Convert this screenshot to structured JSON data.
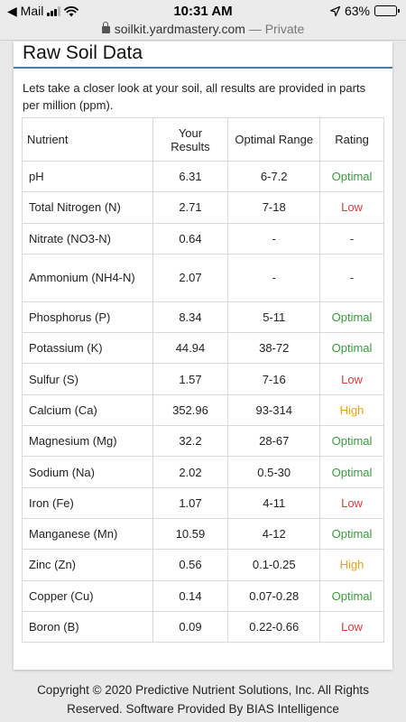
{
  "status_bar": {
    "carrier": "◀ Mail",
    "time": "10:31 AM",
    "battery": "63%",
    "battery_level": 0.63
  },
  "browser": {
    "domain": "soilkit.yardmastery.com",
    "mode": "— Private"
  },
  "page": {
    "title": "Raw Soil Data",
    "intro": "Lets take a closer look at your soil, all results are provided in parts per million (ppm)."
  },
  "table": {
    "headers": [
      "Nutrient",
      "Your Results",
      "Optimal Range",
      "Rating"
    ],
    "rows": [
      {
        "nutrient": "pH",
        "result": "6.31",
        "range": "6-7.2",
        "rating": "Optimal",
        "status": "optimal"
      },
      {
        "nutrient": "Total Nitrogen (N)",
        "result": "2.71",
        "range": "7-18",
        "rating": "Low",
        "status": "low"
      },
      {
        "nutrient": "Nitrate (NO3-N)",
        "result": "0.64",
        "range": "-",
        "rating": "-",
        "status": "none"
      },
      {
        "nutrient": "Ammonium (NH4-N)",
        "result": "2.07",
        "range": "-",
        "rating": "-",
        "status": "none"
      },
      {
        "nutrient": "Phosphorus (P)",
        "result": "8.34",
        "range": "5-11",
        "rating": "Optimal",
        "status": "optimal"
      },
      {
        "nutrient": "Potassium (K)",
        "result": "44.94",
        "range": "38-72",
        "rating": "Optimal",
        "status": "optimal"
      },
      {
        "nutrient": "Sulfur (S)",
        "result": "1.57",
        "range": "7-16",
        "rating": "Low",
        "status": "low"
      },
      {
        "nutrient": "Calcium (Ca)",
        "result": "352.96",
        "range": "93-314",
        "rating": "High",
        "status": "high"
      },
      {
        "nutrient": "Magnesium (Mg)",
        "result": "32.2",
        "range": "28-67",
        "rating": "Optimal",
        "status": "optimal"
      },
      {
        "nutrient": "Sodium (Na)",
        "result": "2.02",
        "range": "0.5-30",
        "rating": "Optimal",
        "status": "optimal"
      },
      {
        "nutrient": "Iron (Fe)",
        "result": "1.07",
        "range": "4-11",
        "rating": "Low",
        "status": "low"
      },
      {
        "nutrient": "Manganese (Mn)",
        "result": "10.59",
        "range": "4-12",
        "rating": "Optimal",
        "status": "optimal"
      },
      {
        "nutrient": "Zinc (Zn)",
        "result": "0.56",
        "range": "0.1-0.25",
        "rating": "High",
        "status": "high"
      },
      {
        "nutrient": "Copper (Cu)",
        "result": "0.14",
        "range": "0.07-0.28",
        "rating": "Optimal",
        "status": "optimal"
      },
      {
        "nutrient": "Boron (B)",
        "result": "0.09",
        "range": "0.22-0.66",
        "rating": "Low",
        "status": "low"
      }
    ]
  },
  "colors": {
    "optimal": "#3a9a3e",
    "low": "#d33f3f",
    "high": "#e8a317",
    "accent": "#4a78b5"
  },
  "footer": {
    "line1": "Copyright © 2020 Predictive Nutrient Solutions, Inc. All Rights",
    "line2": "Reserved. Software Provided By BIAS Intelligence"
  }
}
